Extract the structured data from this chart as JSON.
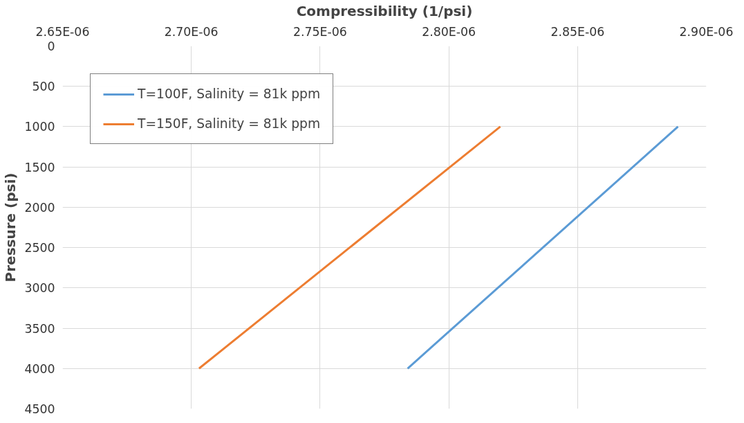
{
  "chart_data": {
    "type": "line",
    "xlabel": "Compressibility (1/psi)",
    "ylabel": "Pressure (psi)",
    "xlim": [
      2.65e-06,
      2.9e-06
    ],
    "xticks": [
      {
        "value": 2.65e-06,
        "label": "2.65E-06"
      },
      {
        "value": 2.7e-06,
        "label": "2.70E-06"
      },
      {
        "value": 2.75e-06,
        "label": "2.75E-06"
      },
      {
        "value": 2.8e-06,
        "label": "2.80E-06"
      },
      {
        "value": 2.85e-06,
        "label": "2.85E-06"
      },
      {
        "value": 2.9e-06,
        "label": "2.90E-06"
      }
    ],
    "ylim": [
      4500,
      0
    ],
    "yticks": [
      0,
      500,
      1000,
      1500,
      2000,
      2500,
      3000,
      3500,
      4000,
      4500
    ],
    "series": [
      {
        "name": "T=100F, Salinity = 81k ppm",
        "color": "#5b9bd5",
        "x": [
          2.889e-06,
          2.784e-06
        ],
        "values": [
          1000,
          4000
        ]
      },
      {
        "name": "T=150F, Salinity = 81k ppm",
        "color": "#ed7d31",
        "x": [
          2.82e-06,
          2.703e-06
        ],
        "values": [
          1000,
          4000
        ]
      }
    ],
    "grid": true,
    "legend": "top left",
    "marker": "none"
  }
}
